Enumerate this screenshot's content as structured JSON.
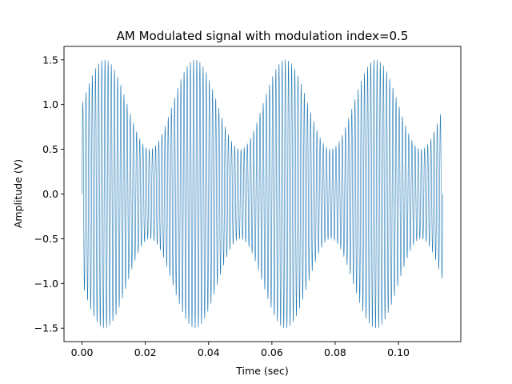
{
  "chart_data": {
    "type": "line",
    "title": "AM Modulated signal with modulation index=0.5",
    "xlabel": "Time (sec)",
    "ylabel": "Amplitude (V)",
    "xlim": [
      -0.0057,
      0.1197
    ],
    "ylim": [
      -1.65,
      1.65
    ],
    "xticks": [
      0.0,
      0.02,
      0.04,
      0.06,
      0.08,
      0.1
    ],
    "xtick_labels": [
      "0.00",
      "0.02",
      "0.04",
      "0.06",
      "0.08",
      "0.10"
    ],
    "yticks": [
      -1.5,
      -1.0,
      -0.5,
      0.0,
      0.5,
      1.0,
      1.5
    ],
    "ytick_labels": [
      "−1.5",
      "−1.0",
      "−0.5",
      "0.0",
      "0.5",
      "1.0",
      "1.5"
    ],
    "grid": false,
    "series": [
      {
        "color": "#1f77b4",
        "carrier_amplitude": 1.0,
        "carrier_frequency_hz": 1000,
        "message_frequency_hz": 35,
        "modulation_index": 0.5,
        "time_range": [
          0.0,
          0.114
        ]
      }
    ]
  }
}
